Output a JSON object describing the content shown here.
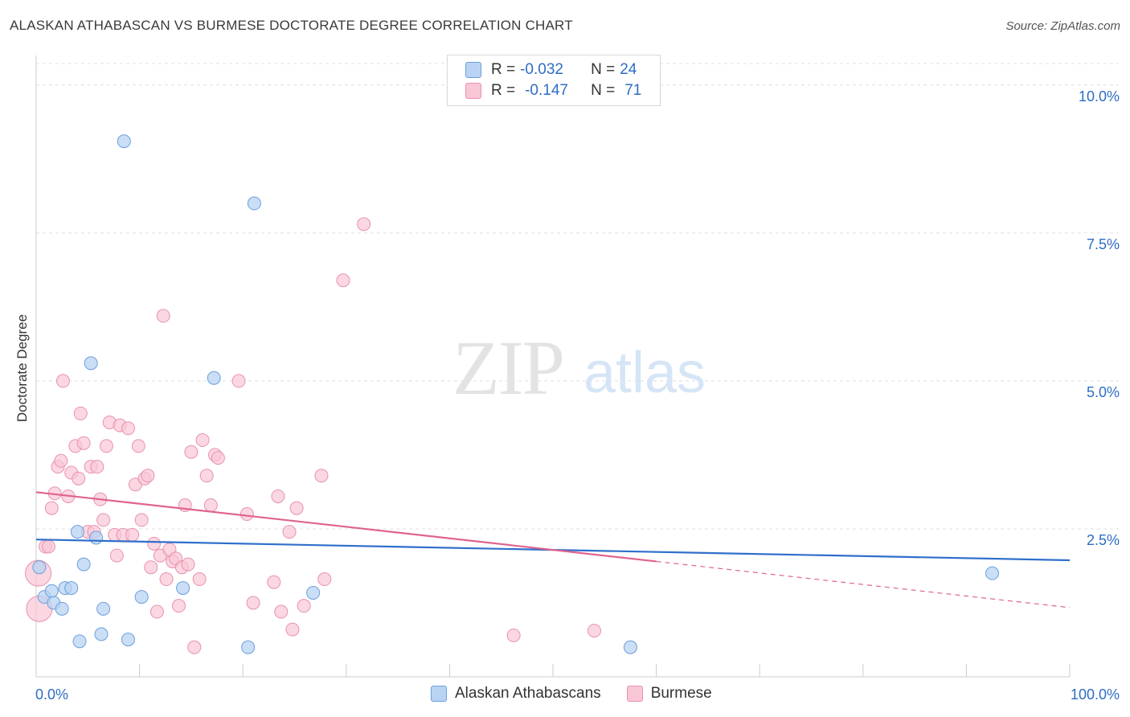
{
  "header": {
    "title": "ALASKAN ATHABASCAN VS BURMESE DOCTORATE DEGREE CORRELATION CHART",
    "source": "Source: ZipAtlas.com"
  },
  "watermark": {
    "zip": "ZIP",
    "atlas": "atlas"
  },
  "legend_top": [
    {
      "r_label": "R = ",
      "r_value": "-0.032",
      "n_label": "N = ",
      "n_value": "24"
    },
    {
      "r_label": "R = ",
      "r_value": "-0.147",
      "n_label": "N = ",
      "n_value": "71"
    }
  ],
  "colors": {
    "series1_fill": "#b8d3f3",
    "series1_stroke": "#6c9fdc",
    "series1_line": "#2f6fcc",
    "series2_fill": "#f9c6d6",
    "series2_stroke": "#e892ae",
    "series2_line": "#e0638f",
    "tick_label": "#2e6dc4",
    "grid": "#e0e0e0"
  },
  "chart_data": {
    "type": "scatter",
    "title": "ALASKAN ATHABASCAN VS BURMESE DOCTORATE DEGREE CORRELATION CHART",
    "xlabel": "",
    "ylabel": "Doctorate Degree",
    "xlim": [
      0,
      100
    ],
    "ylim": [
      0,
      10.5
    ],
    "x_tick_labels": [
      "0.0%",
      "100.0%"
    ],
    "y_ticks": [
      2.5,
      5.0,
      7.5,
      10.0
    ],
    "y_tick_labels": [
      "2.5%",
      "5.0%",
      "7.5%",
      "10.0%"
    ],
    "grid": true,
    "legend_position": "bottom-center",
    "series": [
      {
        "name": "Alaskan Athabascans",
        "r": -0.032,
        "n": 24,
        "trend": {
          "x": [
            0,
            100
          ],
          "y": [
            2.32,
            1.97
          ]
        },
        "points": [
          [
            0.3,
            1.85
          ],
          [
            0.8,
            1.35
          ],
          [
            1.5,
            1.45
          ],
          [
            1.7,
            1.25
          ],
          [
            2.5,
            1.15
          ],
          [
            2.8,
            1.5
          ],
          [
            3.4,
            1.5
          ],
          [
            4.0,
            2.45
          ],
          [
            4.2,
            0.6
          ],
          [
            4.6,
            1.9
          ],
          [
            5.3,
            5.3
          ],
          [
            5.8,
            2.35
          ],
          [
            6.3,
            0.72
          ],
          [
            6.5,
            1.15
          ],
          [
            8.5,
            9.05
          ],
          [
            8.9,
            0.63
          ],
          [
            10.2,
            1.35
          ],
          [
            14.2,
            1.5
          ],
          [
            17.2,
            5.05
          ],
          [
            20.5,
            0.5
          ],
          [
            21.1,
            8.0
          ],
          [
            26.8,
            1.42
          ],
          [
            57.5,
            0.5
          ],
          [
            92.5,
            1.75
          ]
        ]
      },
      {
        "name": "Burmese",
        "r": -0.147,
        "n": 71,
        "trend": {
          "x": [
            0,
            60
          ],
          "y": [
            3.12,
            1.95
          ]
        },
        "trend_dashed": {
          "x": [
            60,
            100
          ],
          "y": [
            1.95,
            1.17
          ]
        },
        "points": [
          [
            0.2,
            1.75
          ],
          [
            0.3,
            1.15
          ],
          [
            0.9,
            2.2
          ],
          [
            1.2,
            2.2
          ],
          [
            1.5,
            2.85
          ],
          [
            1.8,
            3.1
          ],
          [
            2.1,
            3.55
          ],
          [
            2.4,
            3.65
          ],
          [
            2.6,
            5.0
          ],
          [
            3.1,
            3.05
          ],
          [
            3.4,
            3.45
          ],
          [
            3.8,
            3.9
          ],
          [
            4.1,
            3.35
          ],
          [
            4.3,
            4.45
          ],
          [
            4.6,
            3.95
          ],
          [
            5.0,
            2.45
          ],
          [
            5.3,
            3.55
          ],
          [
            5.6,
            2.45
          ],
          [
            5.9,
            3.55
          ],
          [
            6.2,
            3.0
          ],
          [
            6.5,
            2.65
          ],
          [
            6.8,
            3.9
          ],
          [
            7.1,
            4.3
          ],
          [
            7.6,
            2.4
          ],
          [
            7.8,
            2.05
          ],
          [
            8.1,
            4.25
          ],
          [
            8.4,
            2.4
          ],
          [
            8.9,
            4.2
          ],
          [
            9.3,
            2.4
          ],
          [
            9.6,
            3.25
          ],
          [
            9.9,
            3.9
          ],
          [
            10.2,
            2.65
          ],
          [
            10.5,
            3.35
          ],
          [
            10.8,
            3.4
          ],
          [
            11.1,
            1.85
          ],
          [
            11.4,
            2.25
          ],
          [
            11.7,
            1.1
          ],
          [
            12.0,
            2.05
          ],
          [
            12.3,
            6.1
          ],
          [
            12.6,
            1.65
          ],
          [
            12.9,
            2.15
          ],
          [
            13.2,
            1.95
          ],
          [
            13.5,
            2.0
          ],
          [
            13.8,
            1.2
          ],
          [
            14.1,
            1.85
          ],
          [
            14.4,
            2.9
          ],
          [
            14.7,
            1.9
          ],
          [
            15.0,
            3.8
          ],
          [
            15.3,
            0.5
          ],
          [
            15.8,
            1.65
          ],
          [
            16.1,
            4.0
          ],
          [
            16.5,
            3.4
          ],
          [
            16.9,
            2.9
          ],
          [
            17.3,
            3.75
          ],
          [
            17.6,
            3.7
          ],
          [
            19.6,
            5.0
          ],
          [
            20.4,
            2.75
          ],
          [
            21.0,
            1.25
          ],
          [
            23.0,
            1.6
          ],
          [
            23.4,
            3.05
          ],
          [
            23.7,
            1.1
          ],
          [
            24.5,
            2.45
          ],
          [
            24.8,
            0.8
          ],
          [
            25.2,
            2.85
          ],
          [
            25.9,
            1.2
          ],
          [
            27.6,
            3.4
          ],
          [
            27.9,
            1.65
          ],
          [
            29.7,
            6.7
          ],
          [
            31.7,
            7.65
          ],
          [
            46.2,
            0.7
          ],
          [
            54.0,
            0.78
          ]
        ]
      }
    ]
  }
}
